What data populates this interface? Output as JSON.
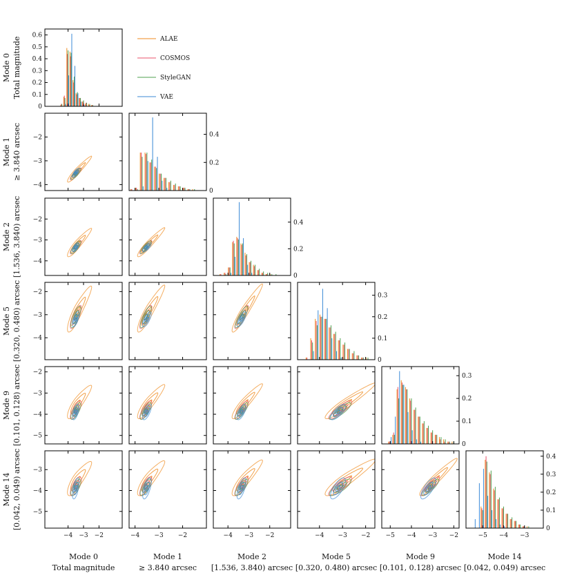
{
  "chart_data": {
    "type": "corner-plot",
    "series": [
      {
        "name": "ALAE",
        "color": "#ef8a1c"
      },
      {
        "name": "COSMOS",
        "color": "#e8506a"
      },
      {
        "name": "StyleGAN",
        "color": "#4ea04e"
      },
      {
        "name": "VAE",
        "color": "#3b8ad6"
      }
    ],
    "legend": {
      "placement": "top-left",
      "entries": [
        "ALAE",
        "COSMOS",
        "StyleGAN",
        "VAE"
      ]
    },
    "modes": [
      {
        "id": "m0",
        "title": "Mode 0",
        "subtitle": "Total magnitude",
        "range": [
          -5.5,
          -0.5
        ],
        "ticks": [
          -4,
          -3,
          -2
        ],
        "hist_range": [
          0,
          0.65
        ],
        "hist_ticks": [
          0,
          0.1,
          0.2,
          0.3,
          0.4,
          0.5,
          0.6
        ]
      },
      {
        "id": "m1",
        "title": "Mode 1",
        "subtitle": "≥ 3.840 arcsec",
        "range": [
          -4.25,
          -1.0
        ],
        "ticks": [
          -4,
          -3,
          -2
        ],
        "hist_range": [
          0,
          0.55
        ],
        "hist_ticks": [
          0,
          0.2,
          0.4
        ]
      },
      {
        "id": "m2",
        "title": "Mode 2",
        "subtitle": "[1.536, 3.840) arcsec",
        "range": [
          -4.7,
          -1.0
        ],
        "ticks": [
          -4,
          -3,
          -2
        ],
        "hist_range": [
          0,
          0.58
        ],
        "hist_ticks": [
          0,
          0.2,
          0.4
        ]
      },
      {
        "id": "m5",
        "title": "Mode 5",
        "subtitle": "[0.320, 0.480) arcsec",
        "range": [
          -4.95,
          -1.6
        ],
        "ticks": [
          -4,
          -3,
          -2
        ],
        "hist_range": [
          0,
          0.36
        ],
        "hist_ticks": [
          0,
          0.1,
          0.2,
          0.3
        ]
      },
      {
        "id": "m9",
        "title": "Mode 9",
        "subtitle": "[0.101, 0.128) arcsec",
        "range": [
          -5.4,
          -1.75
        ],
        "ticks": [
          -5,
          -4,
          -3,
          -2
        ],
        "hist_range": [
          0,
          0.34
        ],
        "hist_ticks": [
          0,
          0.1,
          0.2,
          0.3
        ]
      },
      {
        "id": "m14",
        "title": "Mode 14",
        "subtitle": "[0.042, 0.049) arcsec",
        "range": [
          -5.8,
          -2.1
        ],
        "ticks": [
          -5,
          -4,
          -3
        ],
        "hist_range": [
          0,
          0.43
        ],
        "hist_ticks": [
          0,
          0.1,
          0.2,
          0.3,
          0.4
        ]
      }
    ],
    "marginals": [
      {
        "bins": [
          -4.6,
          -4.4,
          -4.2,
          -4.0,
          -3.8,
          -3.6,
          -3.4,
          -3.2,
          -3.0,
          -2.8,
          -2.6,
          -2.4,
          -2.2,
          -2.0
        ],
        "values": [
          [
            0,
            0.01,
            0.08,
            0.49,
            0.46,
            0.22,
            0.11,
            0.07,
            0.04,
            0.02,
            0.02,
            0.01,
            0,
            0
          ],
          [
            0,
            0.02,
            0.09,
            0.44,
            0.42,
            0.2,
            0.1,
            0.07,
            0.04,
            0.03,
            0.01,
            0.01,
            0,
            0
          ],
          [
            0,
            0.02,
            0.07,
            0.47,
            0.45,
            0.25,
            0.12,
            0.07,
            0.05,
            0.03,
            0.02,
            0.01,
            0,
            0
          ],
          [
            0,
            0,
            0.02,
            0.26,
            0.61,
            0.34,
            0.11,
            0.04,
            0.01,
            0,
            0,
            0,
            0,
            0
          ]
        ]
      },
      {
        "bins": [
          -4.1,
          -3.9,
          -3.7,
          -3.5,
          -3.3,
          -3.1,
          -2.9,
          -2.7,
          -2.5,
          -2.3,
          -2.1,
          -1.9,
          -1.7,
          -1.5,
          -1.3
        ],
        "values": [
          [
            0.01,
            0.02,
            0.27,
            0.27,
            0.2,
            0.17,
            0.12,
            0.09,
            0.06,
            0.04,
            0.03,
            0.02,
            0.01,
            0.01,
            0
          ],
          [
            0.01,
            0.02,
            0.27,
            0.26,
            0.2,
            0.17,
            0.12,
            0.09,
            0.06,
            0.04,
            0.03,
            0.02,
            0.01,
            0,
            0
          ],
          [
            0,
            0.01,
            0.24,
            0.27,
            0.22,
            0.16,
            0.12,
            0.09,
            0.07,
            0.05,
            0.03,
            0.02,
            0.01,
            0.01,
            0
          ],
          [
            0,
            0,
            0.03,
            0.21,
            0.52,
            0.24,
            0.07,
            0.02,
            0,
            0,
            0,
            0,
            0,
            0,
            0
          ]
        ]
      },
      {
        "bins": [
          -4.3,
          -4.1,
          -3.9,
          -3.7,
          -3.5,
          -3.3,
          -3.1,
          -2.9,
          -2.7,
          -2.5,
          -2.3,
          -2.1,
          -1.9,
          -1.7,
          -1.5
        ],
        "values": [
          [
            0.01,
            0.02,
            0.06,
            0.25,
            0.29,
            0.24,
            0.17,
            0.1,
            0.08,
            0.04,
            0.02,
            0.01,
            0.01,
            0,
            0
          ],
          [
            0.01,
            0.02,
            0.06,
            0.26,
            0.28,
            0.23,
            0.15,
            0.1,
            0.07,
            0.04,
            0.02,
            0.01,
            0,
            0,
            0
          ],
          [
            0,
            0.01,
            0.06,
            0.24,
            0.27,
            0.24,
            0.16,
            0.11,
            0.08,
            0.05,
            0.03,
            0.02,
            0.01,
            0.01,
            0
          ],
          [
            0,
            0,
            0.02,
            0.14,
            0.55,
            0.28,
            0.08,
            0.02,
            0,
            0,
            0,
            0,
            0,
            0,
            0
          ]
        ]
      },
      {
        "bins": [
          -4.5,
          -4.3,
          -4.1,
          -3.9,
          -3.7,
          -3.5,
          -3.3,
          -3.1,
          -2.9,
          -2.7,
          -2.5,
          -2.3,
          -2.1,
          -1.9,
          -1.7
        ],
        "values": [
          [
            0.01,
            0.1,
            0.19,
            0.21,
            0.19,
            0.15,
            0.12,
            0.09,
            0.07,
            0.05,
            0.03,
            0.02,
            0.01,
            0.01,
            0
          ],
          [
            0.01,
            0.09,
            0.18,
            0.2,
            0.19,
            0.15,
            0.12,
            0.09,
            0.07,
            0.05,
            0.03,
            0.02,
            0.01,
            0,
            0
          ],
          [
            0,
            0.08,
            0.16,
            0.2,
            0.19,
            0.16,
            0.13,
            0.1,
            0.08,
            0.05,
            0.04,
            0.02,
            0.01,
            0.01,
            0
          ],
          [
            0,
            0.04,
            0.23,
            0.33,
            0.24,
            0.1,
            0.04,
            0.01,
            0,
            0,
            0,
            0,
            0,
            0,
            0
          ]
        ]
      },
      {
        "bins": [
          -5.0,
          -4.8,
          -4.6,
          -4.4,
          -4.2,
          -4.0,
          -3.8,
          -3.6,
          -3.4,
          -3.2,
          -3.0,
          -2.8,
          -2.6,
          -2.4,
          -2.2,
          -2.0
        ],
        "values": [
          [
            0.01,
            0.04,
            0.24,
            0.28,
            0.25,
            0.2,
            0.15,
            0.12,
            0.09,
            0.07,
            0.05,
            0.04,
            0.03,
            0.02,
            0.01,
            0.01
          ],
          [
            0.01,
            0.05,
            0.25,
            0.27,
            0.24,
            0.19,
            0.15,
            0.12,
            0.09,
            0.07,
            0.05,
            0.04,
            0.02,
            0.01,
            0.01,
            0
          ],
          [
            0,
            0.04,
            0.2,
            0.26,
            0.24,
            0.2,
            0.16,
            0.12,
            0.1,
            0.08,
            0.06,
            0.04,
            0.03,
            0.02,
            0.01,
            0.01
          ],
          [
            0.03,
            0.12,
            0.32,
            0.26,
            0.14,
            0.06,
            0.02,
            0.01,
            0,
            0,
            0,
            0,
            0,
            0,
            0,
            0
          ]
        ]
      },
      {
        "bins": [
          -5.4,
          -5.2,
          -5.0,
          -4.8,
          -4.6,
          -4.4,
          -4.2,
          -4.0,
          -3.8,
          -3.6,
          -3.4,
          -3.2,
          -3.0,
          -2.8,
          -2.6
        ],
        "values": [
          [
            0,
            0,
            0.12,
            0.38,
            0.31,
            0.22,
            0.16,
            0.11,
            0.08,
            0.05,
            0.04,
            0.02,
            0.01,
            0.01,
            0
          ],
          [
            0,
            0,
            0.11,
            0.4,
            0.3,
            0.21,
            0.16,
            0.11,
            0.08,
            0.05,
            0.04,
            0.02,
            0.01,
            0,
            0
          ],
          [
            0,
            0,
            0.1,
            0.37,
            0.32,
            0.23,
            0.17,
            0.12,
            0.08,
            0.06,
            0.04,
            0.02,
            0.01,
            0.01,
            0
          ],
          [
            0.05,
            0.25,
            0.33,
            0.18,
            0.1,
            0.05,
            0.02,
            0.01,
            0,
            0,
            0,
            0,
            0,
            0,
            0
          ]
        ]
      }
    ],
    "contours": {
      "levels": [
        0.5,
        1.1,
        1.8
      ],
      "series": {
        "ALAE": {
          "loc": [
            -3.5,
            -3.3,
            -3.0,
            -3.6
          ],
          "scale": [
            0.3,
            0.22,
            0.28,
            0.42,
            0.34,
            0.36
          ],
          "corr": 0.95
        },
        "COSMOS": {
          "loc": [
            -3.55,
            -3.35,
            -3.1,
            -3.8
          ],
          "scale": [
            0.2,
            0.14,
            0.18,
            0.28,
            0.24,
            0.25
          ],
          "corr": 0.92
        },
        "StyleGAN": {
          "loc": [
            -3.55,
            -3.35,
            -3.1,
            -3.85
          ],
          "scale": [
            0.18,
            0.13,
            0.17,
            0.26,
            0.22,
            0.22
          ],
          "corr": 0.9
        },
        "VAE": {
          "loc": [
            -3.5,
            -3.35,
            -3.2,
            -3.9
          ],
          "scale": [
            0.12,
            0.1,
            0.12,
            0.18,
            0.2,
            0.28
          ],
          "corr": 0.8
        }
      }
    }
  }
}
